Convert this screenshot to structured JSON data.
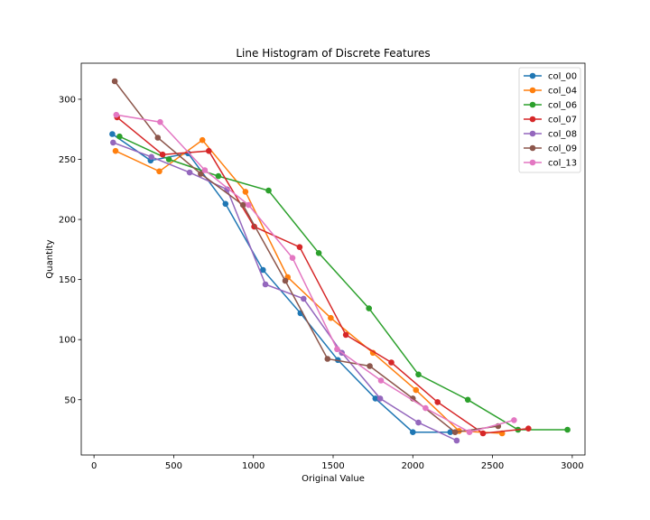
{
  "chart_data": {
    "type": "line",
    "title": "Line Histogram of Discrete Features",
    "xlabel": "Original Value",
    "ylabel": "Quantity",
    "xlim": [
      -80,
      3080
    ],
    "ylim": [
      4,
      330
    ],
    "xticks": [
      0,
      500,
      1000,
      1500,
      2000,
      2500,
      3000
    ],
    "yticks": [
      50,
      100,
      150,
      200,
      250,
      300
    ],
    "grid": false,
    "legend_position": "top-right",
    "series": [
      {
        "name": "col_00",
        "color": "#1f77b4",
        "x": [
          115,
          355,
          590,
          825,
          1060,
          1295,
          1530,
          1765,
          2000,
          2235
        ],
        "y": [
          271,
          249,
          255,
          213,
          158,
          122,
          83,
          51,
          23,
          23
        ]
      },
      {
        "name": "col_04",
        "color": "#ff7f0e",
        "x": [
          135,
          410,
          680,
          950,
          1215,
          1485,
          1750,
          2020,
          2290,
          2560
        ],
        "y": [
          257,
          240,
          266,
          223,
          152,
          118,
          89,
          58,
          24,
          22
        ]
      },
      {
        "name": "col_06",
        "color": "#2ca02c",
        "x": [
          160,
          470,
          780,
          1095,
          1410,
          1725,
          2035,
          2345,
          2660,
          2970
        ],
        "y": [
          269,
          250,
          236,
          224,
          172,
          126,
          71,
          50,
          25,
          25
        ]
      },
      {
        "name": "col_07",
        "color": "#d62728",
        "x": [
          145,
          430,
          720,
          1005,
          1290,
          1580,
          1865,
          2155,
          2440,
          2725
        ],
        "y": [
          285,
          254,
          257,
          194,
          177,
          104,
          81,
          48,
          22,
          26
        ]
      },
      {
        "name": "col_08",
        "color": "#9467bd",
        "x": [
          120,
          360,
          600,
          835,
          1075,
          1315,
          1555,
          1795,
          2035,
          2275
        ],
        "y": [
          264,
          252,
          239,
          225,
          146,
          134,
          89,
          51,
          31,
          16
        ]
      },
      {
        "name": "col_09",
        "color": "#8c564b",
        "x": [
          130,
          400,
          670,
          935,
          1200,
          1465,
          1730,
          2000,
          2265,
          2535
        ],
        "y": [
          315,
          268,
          238,
          212,
          149,
          84,
          78,
          51,
          23,
          28
        ]
      },
      {
        "name": "col_13",
        "color": "#e377c2",
        "x": [
          140,
          415,
          695,
          970,
          1245,
          1525,
          1800,
          2080,
          2355,
          2635
        ],
        "y": [
          287,
          281,
          241,
          212,
          168,
          92,
          66,
          43,
          23,
          33
        ]
      }
    ]
  }
}
